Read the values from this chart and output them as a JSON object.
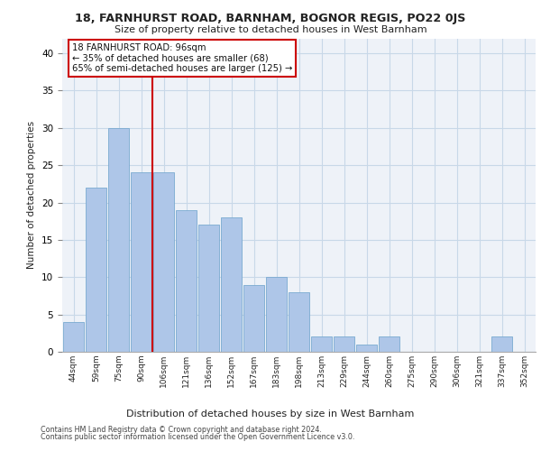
{
  "title1": "18, FARNHURST ROAD, BARNHAM, BOGNOR REGIS, PO22 0JS",
  "title2": "Size of property relative to detached houses in West Barnham",
  "xlabel": "Distribution of detached houses by size in West Barnham",
  "ylabel": "Number of detached properties",
  "bin_labels": [
    "44sqm",
    "59sqm",
    "75sqm",
    "90sqm",
    "106sqm",
    "121sqm",
    "136sqm",
    "152sqm",
    "167sqm",
    "183sqm",
    "198sqm",
    "213sqm",
    "229sqm",
    "244sqm",
    "260sqm",
    "275sqm",
    "290sqm",
    "306sqm",
    "321sqm",
    "337sqm",
    "352sqm"
  ],
  "bar_heights": [
    4,
    22,
    30,
    24,
    24,
    19,
    17,
    18,
    9,
    10,
    8,
    2,
    2,
    1,
    2,
    0,
    0,
    0,
    0,
    2,
    0
  ],
  "bar_color": "#aec6e8",
  "bar_edgecolor": "#7aaad0",
  "vline_x_index": 3,
  "vline_color": "#cc0000",
  "annotation_line1": "18 FARNHURST ROAD: 96sqm",
  "annotation_line2": "← 35% of detached houses are smaller (68)",
  "annotation_line3": "65% of semi-detached houses are larger (125) →",
  "ylim": [
    0,
    42
  ],
  "yticks": [
    0,
    5,
    10,
    15,
    20,
    25,
    30,
    35,
    40
  ],
  "grid_color": "#c8d8e8",
  "bg_color": "#eef2f8",
  "footer1": "Contains HM Land Registry data © Crown copyright and database right 2024.",
  "footer2": "Contains public sector information licensed under the Open Government Licence v3.0."
}
